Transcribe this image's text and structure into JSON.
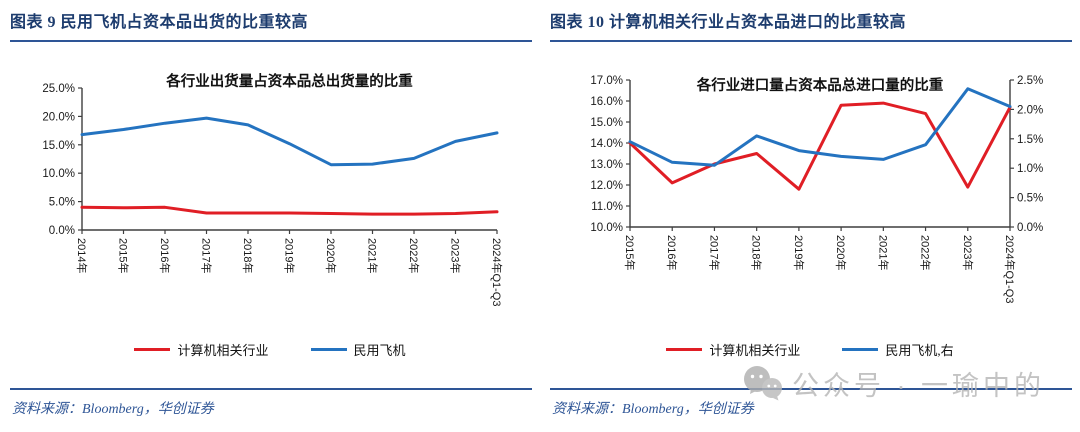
{
  "colors": {
    "navy": "#1d3c6e",
    "rule_blue": "#2e5596",
    "source_blue": "#2e5596",
    "red": "#e01e25",
    "blue": "#2473c0",
    "axis": "#3f3f3f",
    "tick_text": "#1a1a1a",
    "watermark_gray": "#b5b5b5"
  },
  "left_panel": {
    "header": "图表 9  民用飞机占资本品出货的比重较高",
    "source": "资料来源：Bloomberg，华创证券"
  },
  "right_panel": {
    "header": "图表 10  计算机相关行业占资本品进口的比重较高",
    "source": "资料来源：Bloomberg，华创证券",
    "watermark_text": "公众号 · 一瑜中的"
  },
  "chart_data": [
    {
      "type": "line",
      "title": "各行业出货量占资本品总出货量的比重",
      "categories": [
        "2014年",
        "2015年",
        "2016年",
        "2017年",
        "2018年",
        "2019年",
        "2020年",
        "2021年",
        "2022年",
        "2023年",
        "2024年Q1-Q3"
      ],
      "series": [
        {
          "key": "computer-related-industries",
          "name": "计算机相关行业",
          "color": "#e01e25",
          "axis": "left",
          "values": [
            4.0,
            3.9,
            4.0,
            3.0,
            3.0,
            3.0,
            2.9,
            2.8,
            2.8,
            2.9,
            3.2
          ]
        },
        {
          "key": "civil-aircraft",
          "name": "民用飞机",
          "color": "#2473c0",
          "axis": "left",
          "values": [
            16.8,
            17.7,
            18.8,
            19.7,
            18.5,
            15.2,
            11.5,
            11.6,
            12.6,
            15.6,
            17.1
          ]
        }
      ],
      "y_left": {
        "min": 0,
        "max": 25,
        "step": 5,
        "tick_format": "one-decimal-percent"
      },
      "grid": false,
      "legend_position": "bottom",
      "unit": "percent of total capital goods shipments"
    },
    {
      "type": "line",
      "title": "各行业进口量占资本品总进口量的比重",
      "categories": [
        "2015年",
        "2016年",
        "2017年",
        "2018年",
        "2019年",
        "2020年",
        "2021年",
        "2022年",
        "2023年",
        "2024年Q1-Q3"
      ],
      "series": [
        {
          "key": "computer-related-industries",
          "name": "计算机相关行业",
          "color": "#e01e25",
          "axis": "left",
          "values": [
            14.0,
            12.1,
            13.0,
            13.5,
            11.8,
            15.8,
            15.9,
            15.4,
            11.9,
            15.7
          ]
        },
        {
          "key": "civil-aircraft-right-axis",
          "name": "民用飞机,右",
          "color": "#2473c0",
          "axis": "right",
          "values": [
            1.45,
            1.1,
            1.05,
            1.55,
            1.3,
            1.2,
            1.15,
            1.4,
            2.35,
            2.05
          ]
        }
      ],
      "y_left": {
        "min": 10,
        "max": 17,
        "step": 1,
        "tick_format": "one-decimal-percent"
      },
      "y_right": {
        "min": 0,
        "max": 2.5,
        "step": 0.5,
        "tick_format": "one-decimal-percent"
      },
      "grid": false,
      "legend_position": "bottom",
      "unit": "percent of total capital goods imports"
    }
  ]
}
